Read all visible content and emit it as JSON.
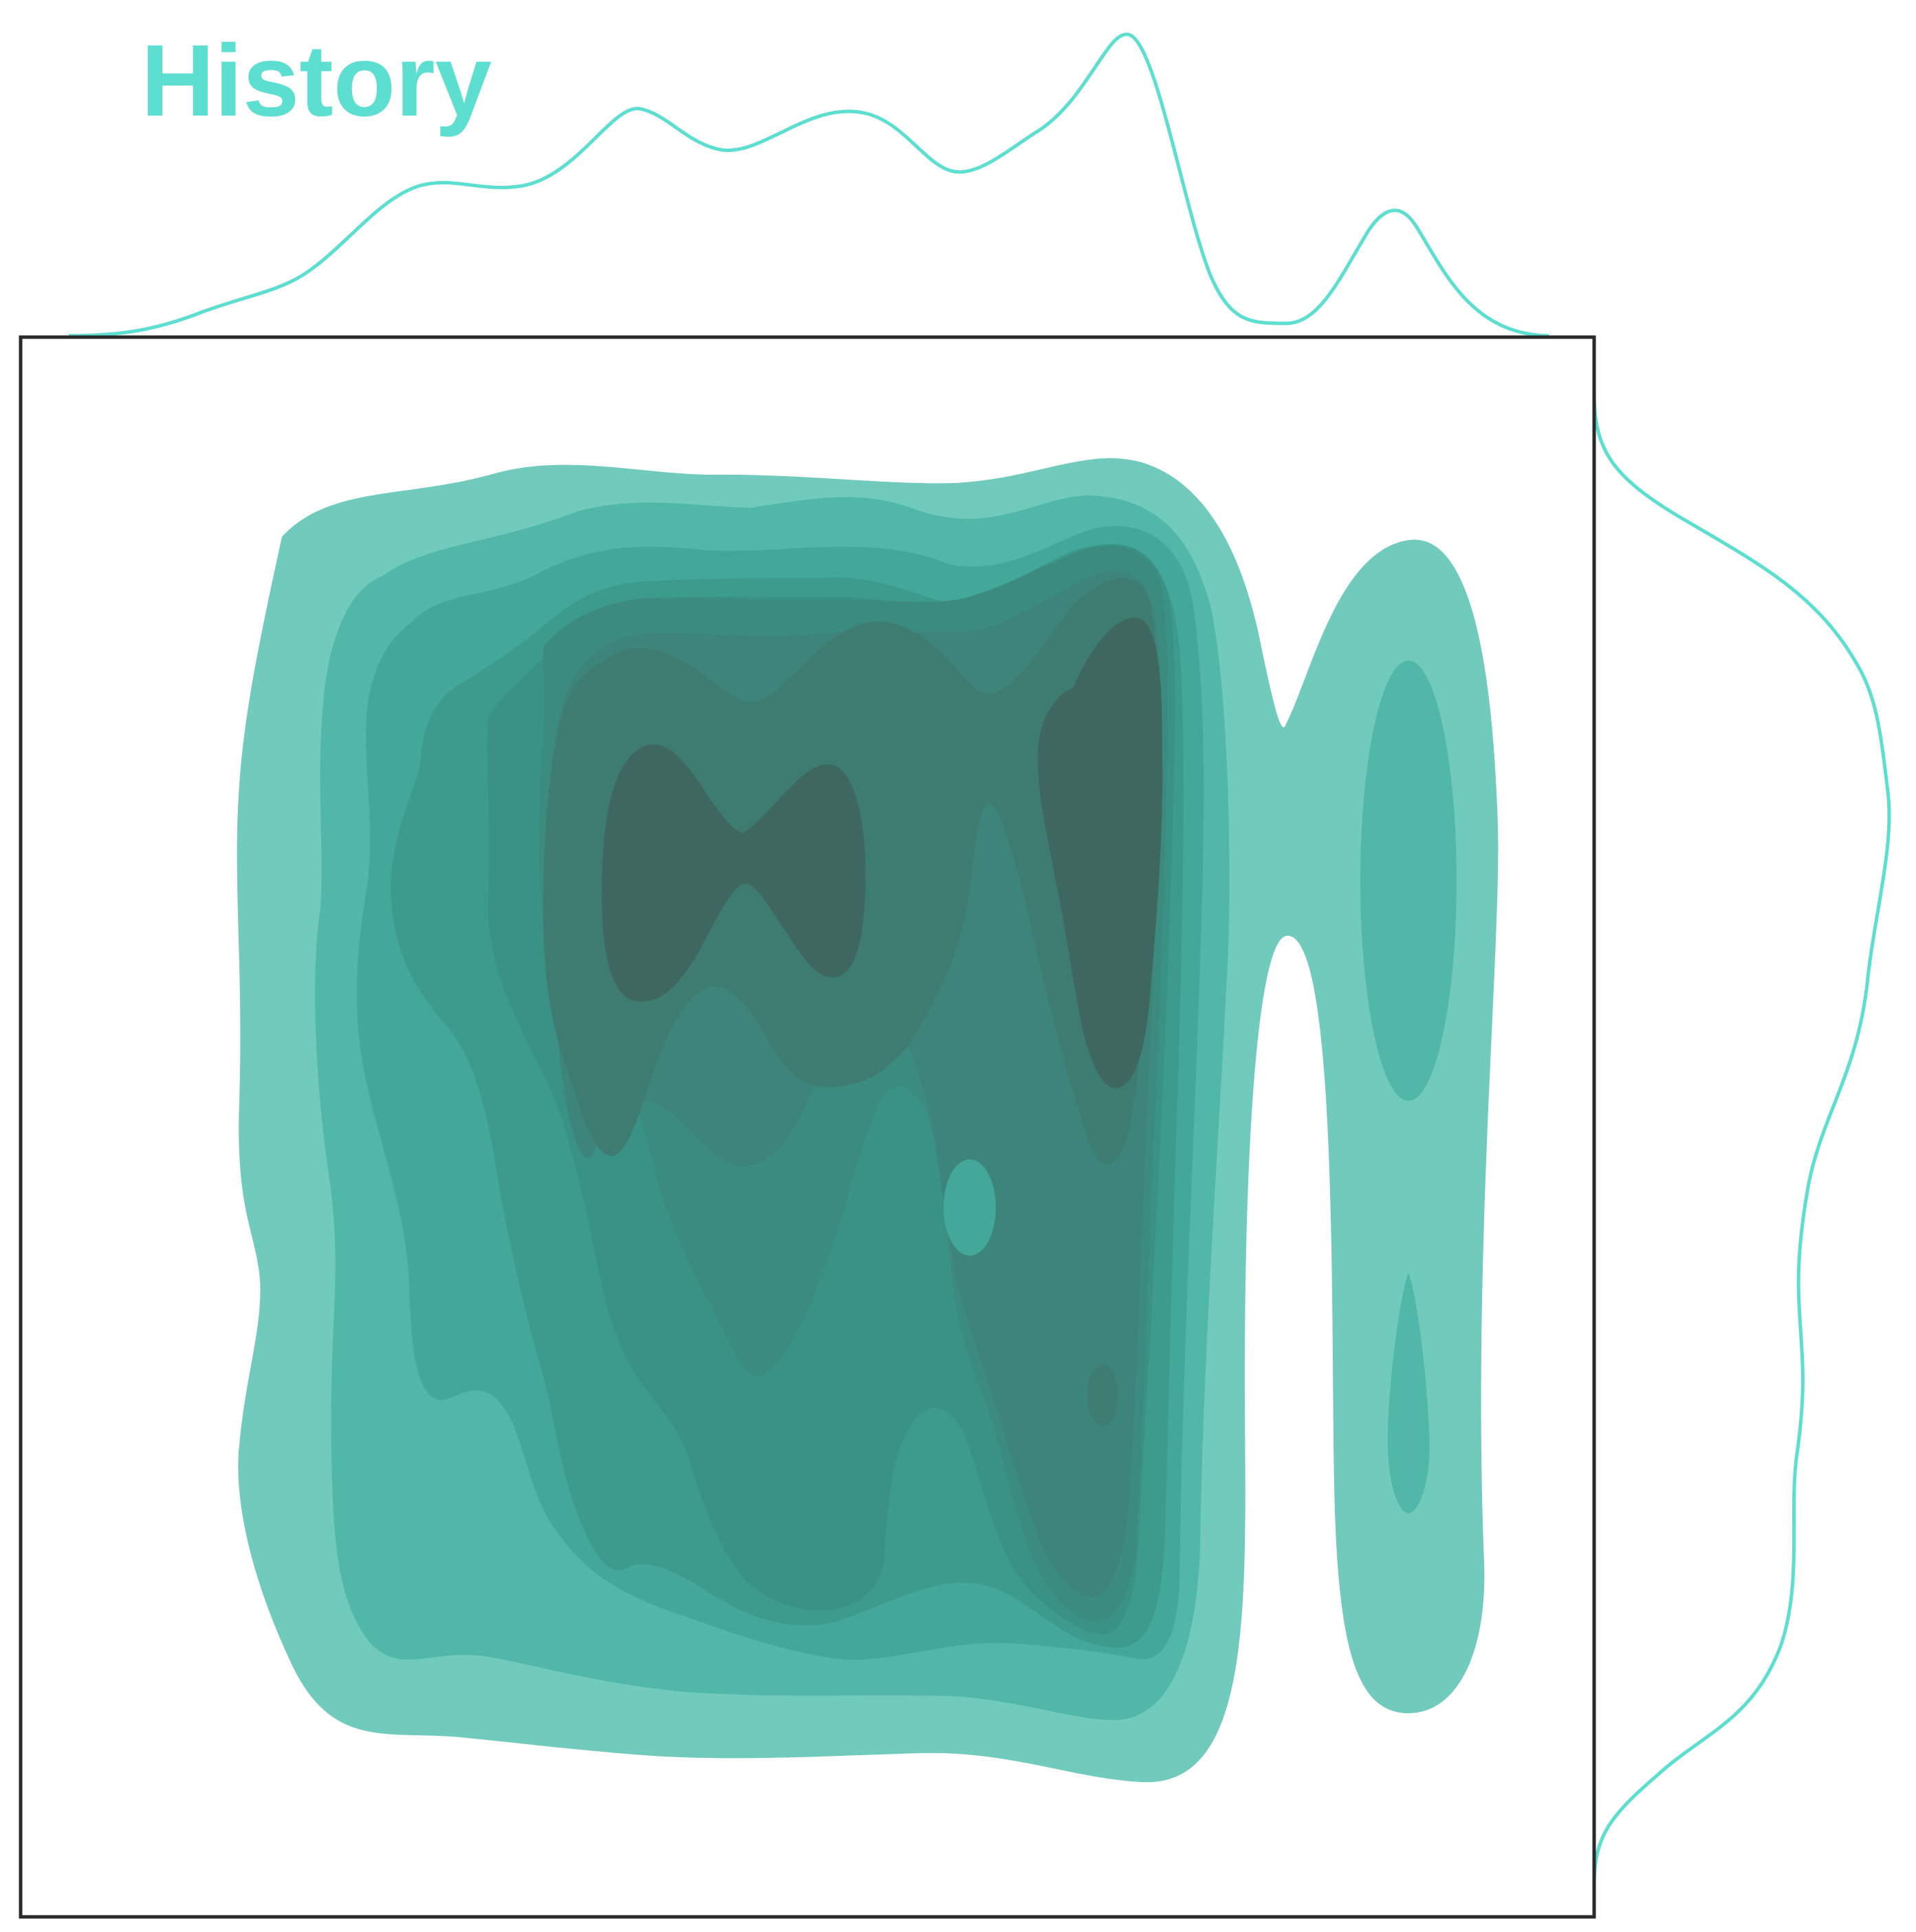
{
  "chart_data": {
    "type": "kde-joint",
    "title": "History",
    "xlabel": "",
    "ylabel": "",
    "colors": {
      "accent": "#5cded0",
      "frame": "#2a2a2a",
      "levels": [
        "#70cbbd",
        "#50b7a9",
        "#43a799",
        "#3d9b8d",
        "#3a9185",
        "#3c8b7f",
        "#3d857a",
        "#3e7b71",
        "#3e6760"
      ]
    },
    "clusters": [
      {
        "name": "main-block",
        "x_range": [
          0.12,
          0.63
        ],
        "y_range": [
          0.14,
          0.93
        ],
        "peak_density": 9
      },
      {
        "name": "right-column",
        "x_range": [
          0.68,
          0.75
        ],
        "y_range": [
          0.21,
          0.86
        ],
        "peak_density": 2
      }
    ],
    "density_peaks": [
      {
        "x": 0.57,
        "y": 0.27,
        "level": 9
      },
      {
        "x": 0.32,
        "y": 0.32,
        "level": 9
      },
      {
        "x": 0.43,
        "y": 0.33,
        "level": 9
      },
      {
        "x": 0.55,
        "y": 0.66,
        "level": 7
      },
      {
        "x": 0.41,
        "y": 0.72,
        "level": 6
      },
      {
        "x": 0.49,
        "y": 0.55,
        "level": 4
      },
      {
        "x": 0.72,
        "y": 0.3,
        "level": 2
      },
      {
        "x": 0.72,
        "y": 0.69,
        "level": 2
      }
    ],
    "marginal_x": {
      "x": [
        0.0,
        0.06,
        0.12,
        0.18,
        0.22,
        0.26,
        0.31,
        0.35,
        0.4,
        0.45,
        0.48,
        0.52,
        0.56,
        0.59,
        0.61,
        0.64,
        0.67,
        0.7,
        0.73,
        0.76,
        0.79,
        0.82
      ],
      "density": [
        0.0,
        0.01,
        0.12,
        0.45,
        0.45,
        0.7,
        0.6,
        0.72,
        0.78,
        0.5,
        0.57,
        0.9,
        0.99,
        0.6,
        0.3,
        0.04,
        0.15,
        0.37,
        0.4,
        0.12,
        0.02,
        0.0
      ]
    },
    "marginal_y": {
      "y": [
        0.0,
        0.03,
        0.07,
        0.15,
        0.22,
        0.3,
        0.37,
        0.45,
        0.52,
        0.6,
        0.66,
        0.72,
        0.78,
        0.86,
        0.92,
        0.96,
        1.0
      ],
      "density": [
        0.0,
        0.05,
        0.3,
        0.64,
        0.83,
        0.98,
        0.9,
        0.77,
        0.73,
        0.71,
        0.73,
        0.64,
        0.6,
        0.55,
        0.3,
        0.12,
        0.0
      ]
    },
    "xlim": [
      0,
      1
    ],
    "ylim": [
      0,
      1
    ]
  }
}
